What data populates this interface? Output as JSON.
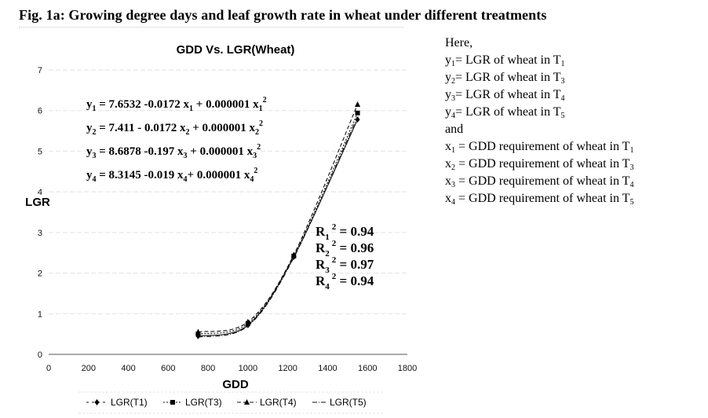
{
  "figure": {
    "caption": "Fig. 1a: Growing degree days and leaf growth rate in wheat under different treatments"
  },
  "chart_data": {
    "type": "scatter",
    "title": "GDD Vs. LGR(Wheat)",
    "xlabel": "GDD",
    "ylabel": "LGR",
    "xlim": [
      0,
      1800
    ],
    "ylim": [
      0,
      7
    ],
    "x_ticks": [
      0,
      200,
      400,
      600,
      800,
      1000,
      1200,
      1400,
      1600,
      1800
    ],
    "y_ticks": [
      0,
      1,
      2,
      3,
      4,
      5,
      6,
      7
    ],
    "grid": true,
    "legend_position": "bottom",
    "series": [
      {
        "name": "LGR(T1)",
        "marker": "diamond",
        "line": "solid-thin",
        "x": [
          750,
          1000,
          1230,
          1550
        ],
        "y": [
          0.45,
          0.72,
          2.4,
          5.78
        ]
      },
      {
        "name": "LGR(T3)",
        "marker": "square",
        "line": "dotted",
        "x": [
          750,
          1000,
          1230,
          1550
        ],
        "y": [
          0.5,
          0.76,
          2.42,
          5.94
        ]
      },
      {
        "name": "LGR(T4)",
        "marker": "triangle",
        "line": "dashed",
        "x": [
          750,
          1000,
          1230,
          1550
        ],
        "y": [
          0.55,
          0.8,
          2.45,
          6.15
        ]
      },
      {
        "name": "LGR(T5)",
        "marker": "none",
        "line": "dash-dot",
        "x": [
          750,
          1000,
          1230,
          1550
        ],
        "y": [
          0.42,
          0.7,
          2.38,
          5.85
        ]
      }
    ],
    "equations": [
      {
        "lhs": "y",
        "sub": "1",
        "rhs_a": " = 7.6532 -0.0172 x",
        "rhs_sub": "1",
        "rhs_b": " + 0.000001 x",
        "rhs_sub2": "1",
        "sup": "2"
      },
      {
        "lhs": "y",
        "sub": "2",
        "rhs_a": " = 7.411 - 0.0172 x",
        "rhs_sub": "2",
        "rhs_b": " + 0.000001 x",
        "rhs_sub2": "2",
        "sup": "2"
      },
      {
        "lhs": "y",
        "sub": "3",
        "rhs_a": " = 8.6878 -0.197 x",
        "rhs_sub": "3",
        "rhs_b": " + 0.000001 x",
        "rhs_sub2": "3",
        "sup": "2"
      },
      {
        "lhs": "y",
        "sub": "4",
        "rhs_a": " = 8.3145 -0.019 x",
        "rhs_sub": "4",
        "rhs_b": "+ 0.000001 x",
        "rhs_sub2": "4",
        "sup": "2"
      }
    ],
    "r_squared": [
      {
        "label": "R",
        "sub": "1",
        "sup": "2",
        "value": " = 0.94"
      },
      {
        "label": "R",
        "sub": "2",
        "sup": "2",
        "value": " = 0.96"
      },
      {
        "label": "R",
        "sub": "3",
        "sup": "2",
        "value": " = 0.97"
      },
      {
        "label": "R",
        "sub": "4",
        "sup": "2",
        "value": " = 0.94"
      }
    ]
  },
  "notes": {
    "intro": "Here,",
    "y_defs": [
      {
        "sym": "y",
        "sub": "1",
        "text": "= LGR of wheat in T",
        "tsub": "1"
      },
      {
        "sym": "y",
        "sub": "2",
        "text": "= LGR of wheat in T",
        "tsub": "3"
      },
      {
        "sym": "y",
        "sub": "3",
        "text": "= LGR of wheat in T",
        "tsub": "4"
      },
      {
        "sym": "y",
        "sub": "4",
        "text": "= LGR of wheat in T",
        "tsub": "5"
      }
    ],
    "and": "and",
    "x_defs": [
      {
        "sym": "x",
        "sub": "1",
        "text": " = GDD requirement of wheat in T",
        "tsub": "1"
      },
      {
        "sym": "x",
        "sub": "2",
        "text": " = GDD requirement of wheat in T",
        "tsub": "3"
      },
      {
        "sym": "x",
        "sub": "3",
        "text": " = GDD requirement of wheat in T",
        "tsub": "4"
      },
      {
        "sym": "x",
        "sub": "4",
        "text": " = GDD requirement of wheat in T",
        "tsub": "5"
      }
    ]
  }
}
